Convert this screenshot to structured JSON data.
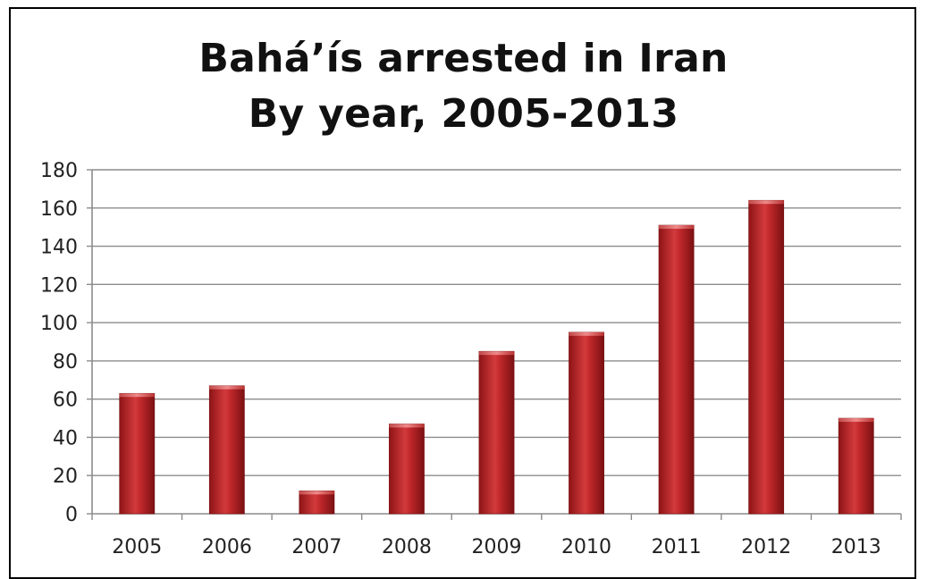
{
  "chart_data": {
    "type": "bar",
    "title": "Bahá’ís arrested in Iran",
    "subtitle": "By year, 2005-2013",
    "xlabel": "",
    "ylabel": "",
    "categories": [
      "2005",
      "2006",
      "2007",
      "2008",
      "2009",
      "2010",
      "2011",
      "2012",
      "2013"
    ],
    "values": [
      63,
      67,
      12,
      47,
      85,
      95,
      151,
      164,
      50
    ],
    "ylim": [
      0,
      180
    ],
    "yticks": [
      "0",
      "20",
      "40",
      "60",
      "80",
      "100",
      "120",
      "140",
      "160",
      "180"
    ],
    "grid": true,
    "legend": "none",
    "colors": {
      "bar": "#c0282b",
      "bar_dark": "#8e1416",
      "bar_light": "#e26a6a",
      "grid": "#8c8c8c"
    }
  }
}
